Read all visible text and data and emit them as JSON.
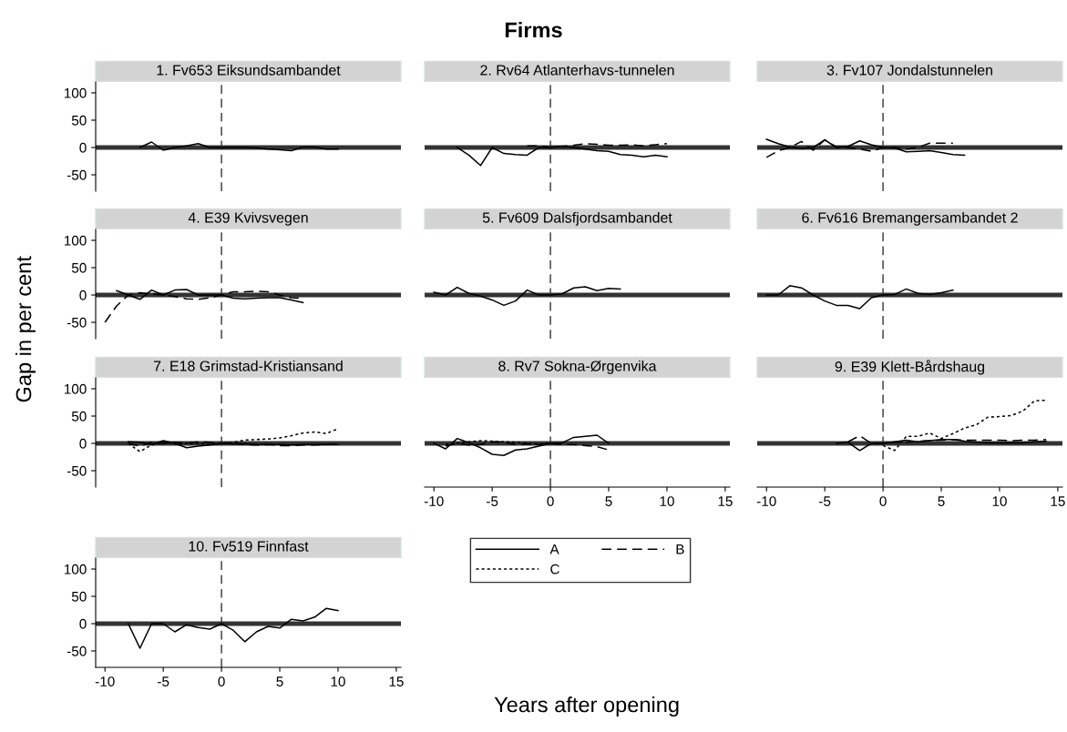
{
  "chart_data": [
    {
      "type": "line",
      "title": "1. Fv653 Eiksundsambandet",
      "annotations": [
        "Firms"
      ],
      "xlim": [
        -10.8,
        15.4
      ],
      "ylim": [
        -80,
        120
      ],
      "yticks": [
        -50,
        0,
        50,
        100
      ],
      "tick_labels": "y",
      "ref_lines": [
        {
          "axis": "y",
          "value": 0,
          "color": "#333333",
          "line_style": "solid"
        },
        {
          "axis": "x",
          "value": 0,
          "color": "#333333",
          "line_style": "dashed"
        }
      ],
      "series": [
        {
          "color": "#000000",
          "line_style": "solid",
          "x": [
            -7,
            -6,
            -5,
            -4,
            -3,
            -2,
            -1,
            0,
            1,
            2,
            3,
            4,
            5,
            6,
            7,
            8,
            9,
            10
          ],
          "values": [
            0,
            10,
            -5,
            0,
            3,
            7,
            0,
            0,
            0,
            0,
            -1,
            -3,
            -4,
            -6,
            1,
            1,
            -3,
            -3
          ]
        }
      ]
    },
    {
      "type": "line",
      "title": "2. Rv64 Atlanterhavs-tunnelen",
      "xlim": [
        -10.8,
        15.4
      ],
      "ylim": [
        -80,
        120
      ],
      "yticks": [
        -50,
        0,
        50,
        100
      ],
      "tick_labels": false,
      "ref_lines": [
        {
          "axis": "y",
          "value": 0,
          "color": "#333333",
          "line_style": "solid"
        },
        {
          "axis": "x",
          "value": 0,
          "color": "#333333",
          "line_style": "dashed"
        }
      ],
      "series": [
        {
          "color": "#000000",
          "line_style": "solid",
          "x": [
            -8,
            -7,
            -6,
            -5,
            -4,
            -3,
            -2,
            -1,
            0,
            1,
            2,
            3,
            4,
            5,
            6,
            7,
            8,
            9,
            10
          ],
          "values": [
            0,
            -14,
            -33,
            0,
            -11,
            -13,
            -14,
            0,
            0,
            2,
            0,
            -3,
            -6,
            -7,
            -13,
            -14,
            -17,
            -14,
            -17
          ]
        },
        {
          "color": "#000000",
          "line_style": "dashed",
          "x": [
            -2,
            -1,
            0,
            1,
            2,
            3,
            4,
            5,
            6,
            7,
            8,
            9,
            10
          ],
          "values": [
            3,
            3,
            0,
            2,
            4,
            7,
            6,
            4,
            4,
            5,
            3,
            5,
            7
          ]
        }
      ]
    },
    {
      "type": "line",
      "title": "3. Fv107 Jondalstunnelen",
      "xlim": [
        -10.8,
        15.4
      ],
      "ylim": [
        -80,
        120
      ],
      "yticks": [
        -50,
        0,
        50,
        100
      ],
      "tick_labels": false,
      "ref_lines": [
        {
          "axis": "y",
          "value": 0,
          "color": "#333333",
          "line_style": "solid"
        },
        {
          "axis": "x",
          "value": 0,
          "color": "#333333",
          "line_style": "dashed"
        }
      ],
      "series": [
        {
          "color": "#000000",
          "line_style": "solid",
          "x": [
            -10,
            -9,
            -8,
            -7,
            -6,
            -5,
            -4,
            -3,
            -2,
            -1,
            0,
            1,
            2,
            3,
            4,
            5,
            6,
            7
          ],
          "values": [
            15,
            7,
            1,
            -2,
            0,
            14,
            0,
            2,
            12,
            5,
            0,
            -1,
            -8,
            -7,
            -6,
            -9,
            -13,
            -14
          ]
        },
        {
          "color": "#000000",
          "line_style": "dashed",
          "x": [
            -10,
            -9,
            -8,
            -7,
            -6,
            -5,
            -4,
            -3,
            -2,
            -1,
            0,
            1,
            2,
            3,
            4,
            5,
            6
          ],
          "values": [
            -18,
            -6,
            0,
            11,
            -5,
            14,
            1,
            0,
            -3,
            -7,
            0,
            0,
            -3,
            0,
            8,
            8,
            8
          ]
        }
      ]
    },
    {
      "type": "line",
      "title": "4. E39 Kvivsvegen",
      "ylabel": "Gap in per cent",
      "xlim": [
        -10.8,
        15.4
      ],
      "ylim": [
        -80,
        120
      ],
      "yticks": [
        -50,
        0,
        50,
        100
      ],
      "tick_labels": "y",
      "ref_lines": [
        {
          "axis": "y",
          "value": 0,
          "color": "#333333",
          "line_style": "solid"
        },
        {
          "axis": "x",
          "value": 0,
          "color": "#333333",
          "line_style": "dashed"
        }
      ],
      "series": [
        {
          "color": "#000000",
          "line_style": "solid",
          "x": [
            -9,
            -8,
            -7,
            -6,
            -5,
            -4,
            -3,
            -2,
            -1,
            0,
            1,
            2,
            3,
            4,
            5,
            6,
            7
          ],
          "values": [
            8,
            0,
            -8,
            9,
            0,
            9,
            10,
            0,
            0,
            0,
            -6,
            -7,
            -6,
            -5,
            -5,
            -9,
            -14
          ]
        },
        {
          "color": "#000000",
          "line_style": "dashed",
          "x": [
            -10,
            -9,
            -8,
            -7,
            -6,
            -5,
            -4,
            -3,
            -2,
            -1,
            0,
            1,
            2,
            3,
            4,
            5,
            6,
            7
          ],
          "values": [
            -50,
            -20,
            0,
            4,
            2,
            0,
            -3,
            -7,
            -8,
            -5,
            0,
            6,
            6,
            7,
            6,
            0,
            -5,
            -6
          ]
        }
      ]
    },
    {
      "type": "line",
      "title": "5. Fv609 Dalsfjordsambandet",
      "xlim": [
        -10.8,
        15.4
      ],
      "ylim": [
        -80,
        120
      ],
      "yticks": [
        -50,
        0,
        50,
        100
      ],
      "tick_labels": false,
      "ref_lines": [
        {
          "axis": "y",
          "value": 0,
          "color": "#333333",
          "line_style": "solid"
        },
        {
          "axis": "x",
          "value": 0,
          "color": "#333333",
          "line_style": "dashed"
        }
      ],
      "series": [
        {
          "color": "#000000",
          "line_style": "solid",
          "x": [
            -10,
            -9,
            -8,
            -7,
            -6,
            -5,
            -4,
            -3,
            -2,
            -1,
            0,
            1,
            2,
            3,
            4,
            5,
            6
          ],
          "values": [
            5,
            0,
            14,
            3,
            -2,
            -9,
            -19,
            -11,
            9,
            0,
            0,
            2,
            13,
            15,
            8,
            12,
            11
          ]
        }
      ]
    },
    {
      "type": "line",
      "title": "6. Fv616 Bremangersambandet 2",
      "xlim": [
        -10.8,
        15.4
      ],
      "ylim": [
        -80,
        120
      ],
      "yticks": [
        -50,
        0,
        50,
        100
      ],
      "tick_labels": false,
      "ref_lines": [
        {
          "axis": "y",
          "value": 0,
          "color": "#333333",
          "line_style": "solid"
        },
        {
          "axis": "x",
          "value": 0,
          "color": "#333333",
          "line_style": "dashed"
        }
      ],
      "series": [
        {
          "color": "#000000",
          "line_style": "solid",
          "x": [
            -10,
            -9,
            -8,
            -7,
            -6,
            -5,
            -4,
            -3,
            -2,
            -1,
            0,
            1,
            2,
            3,
            4,
            5,
            6
          ],
          "values": [
            0,
            0,
            17,
            13,
            0,
            -11,
            -19,
            -19,
            -25,
            -5,
            0,
            1,
            11,
            3,
            1,
            4,
            9
          ]
        }
      ]
    },
    {
      "type": "line",
      "title": "7. E18 Grimstad-Kristiansand",
      "legend": "bottom right",
      "xlim": [
        -10.8,
        15.4
      ],
      "ylim": [
        -80,
        120
      ],
      "yticks": [
        -50,
        0,
        50,
        100
      ],
      "tick_labels": "y",
      "ref_lines": [
        {
          "axis": "y",
          "value": 0,
          "color": "#333333",
          "line_style": "solid"
        },
        {
          "axis": "x",
          "value": 0,
          "color": "#333333",
          "line_style": "dashed"
        }
      ],
      "series": [
        {
          "name": "A",
          "color": "#000000",
          "line_style": "solid",
          "x": [
            -8,
            -7,
            -6,
            -5,
            -4,
            -3,
            -2,
            -1,
            0,
            1,
            2,
            3,
            4,
            5,
            6,
            7,
            8,
            9,
            10
          ],
          "values": [
            3,
            2,
            -2,
            5,
            0,
            -8,
            -5,
            -3,
            0,
            -1,
            -1,
            -2,
            -2,
            -2,
            -3,
            -2,
            -2,
            -2,
            -2
          ]
        },
        {
          "name": "B",
          "color": "#000000",
          "line_style": "dashed",
          "x": [
            -8,
            -7,
            -6,
            -5,
            -4,
            -3,
            -2,
            -1,
            0,
            1,
            2,
            3,
            4,
            5,
            6,
            7,
            8,
            9,
            10
          ],
          "values": [
            0,
            -5,
            2,
            0,
            2,
            0,
            3,
            2,
            0,
            0,
            -2,
            -3,
            -2,
            -4,
            -4,
            -3,
            -3,
            -2,
            -2
          ]
        },
        {
          "name": "C",
          "color": "#000000",
          "line_style": "dotted",
          "x": [
            -8,
            -7,
            -6,
            -5,
            -4,
            -3,
            -2,
            -1,
            0,
            1,
            2,
            3,
            4,
            5,
            6,
            7,
            8,
            9,
            10
          ],
          "values": [
            0,
            -15,
            -3,
            2,
            -1,
            0,
            0,
            -1,
            0,
            2,
            6,
            7,
            8,
            10,
            14,
            19,
            21,
            18,
            27
          ]
        }
      ]
    },
    {
      "type": "line",
      "title": "8. Rv7 Sokna-Ørgenvika",
      "xlim": [
        -10.8,
        15.4
      ],
      "ylim": [
        -80,
        120
      ],
      "xticks": [
        -10,
        -5,
        0,
        5,
        10,
        15
      ],
      "yticks": [
        -50,
        0,
        50,
        100
      ],
      "tick_labels": "x",
      "ref_lines": [
        {
          "axis": "y",
          "value": 0,
          "color": "#333333",
          "line_style": "solid"
        },
        {
          "axis": "x",
          "value": 0,
          "color": "#333333",
          "line_style": "dashed"
        }
      ],
      "series": [
        {
          "color": "#000000",
          "line_style": "solid",
          "x": [
            -10,
            -9,
            -8,
            -7,
            -6,
            -5,
            -4,
            -3,
            -2,
            -1,
            0,
            1,
            2,
            3,
            4,
            5
          ],
          "values": [
            0,
            -10,
            9,
            1,
            -8,
            -20,
            -22,
            -12,
            -10,
            -5,
            0,
            1,
            11,
            13,
            15,
            0
          ]
        },
        {
          "color": "#000000",
          "line_style": "dashed",
          "x": [
            -9,
            -8,
            -7,
            -6,
            -5,
            -4,
            -3,
            -2,
            -1,
            0,
            1,
            2,
            3,
            4,
            5
          ],
          "values": [
            -5,
            0,
            -3,
            -2,
            3,
            2,
            -2,
            -1,
            -2,
            0,
            -2,
            -2,
            -4,
            -6,
            -12
          ]
        },
        {
          "color": "#000000",
          "line_style": "dotted",
          "x": [
            -9,
            -8,
            -7,
            -6,
            -5,
            -4,
            -3,
            -2,
            -1,
            0,
            1
          ],
          "values": [
            -2,
            0,
            3,
            5,
            4,
            3,
            2,
            0,
            -1,
            0,
            -2
          ]
        }
      ]
    },
    {
      "type": "line",
      "title": "9. E39 Klett-Bårdshaug",
      "xlim": [
        -10.8,
        15.4
      ],
      "ylim": [
        -80,
        120
      ],
      "xticks": [
        -10,
        -5,
        0,
        5,
        10,
        15
      ],
      "yticks": [
        -50,
        0,
        50,
        100
      ],
      "tick_labels": "x",
      "ref_lines": [
        {
          "axis": "y",
          "value": 0,
          "color": "#333333",
          "line_style": "solid"
        },
        {
          "axis": "x",
          "value": 0,
          "color": "#333333",
          "line_style": "dashed"
        }
      ],
      "series": [
        {
          "color": "#000000",
          "line_style": "solid",
          "x": [
            -4,
            -3,
            -2,
            -1,
            0,
            1,
            2,
            3,
            4,
            5,
            6,
            7,
            8,
            9,
            10,
            11,
            12,
            13,
            14
          ],
          "values": [
            0,
            2,
            -13,
            0,
            0,
            3,
            6,
            3,
            5,
            7,
            7,
            4,
            2,
            1,
            1,
            1,
            1,
            3,
            4
          ]
        },
        {
          "color": "#000000",
          "line_style": "dashed",
          "x": [
            -3,
            -2,
            -1,
            0,
            1,
            2,
            3,
            4,
            5,
            6,
            7,
            8,
            9,
            10,
            11,
            12,
            13,
            14
          ],
          "values": [
            3,
            14,
            0,
            0,
            2,
            2,
            4,
            5,
            6,
            7,
            6,
            6,
            6,
            6,
            5,
            6,
            6,
            7
          ]
        },
        {
          "color": "#000000",
          "line_style": "dotted",
          "x": [
            0,
            1,
            2,
            3,
            4,
            5,
            6,
            7,
            8,
            9,
            10,
            11,
            12,
            13,
            14
          ],
          "values": [
            -4,
            -13,
            13,
            13,
            19,
            9,
            18,
            28,
            34,
            48,
            49,
            51,
            59,
            78,
            79
          ]
        }
      ]
    },
    {
      "type": "line",
      "title": "10. Fv519 Finnfast",
      "xlabel": "Years after opening",
      "xlim": [
        -10.8,
        15.4
      ],
      "ylim": [
        -80,
        120
      ],
      "xticks": [
        -10,
        -5,
        0,
        5,
        10,
        15
      ],
      "yticks": [
        -50,
        0,
        50,
        100
      ],
      "ref_lines": [
        {
          "axis": "y",
          "value": 0,
          "color": "#333333",
          "line_style": "solid"
        },
        {
          "axis": "x",
          "value": 0,
          "color": "#333333",
          "line_style": "dashed"
        }
      ],
      "series": [
        {
          "color": "#000000",
          "line_style": "solid",
          "x": [
            -8,
            -7,
            -6,
            -5,
            -4,
            -3,
            -2,
            -1,
            0,
            1,
            2,
            3,
            4,
            5,
            6,
            7,
            8,
            9,
            10
          ],
          "values": [
            0,
            -45,
            0,
            0,
            -15,
            -2,
            -7,
            -10,
            0,
            -12,
            -33,
            -15,
            -5,
            -8,
            8,
            5,
            12,
            28,
            24
          ]
        }
      ]
    }
  ]
}
